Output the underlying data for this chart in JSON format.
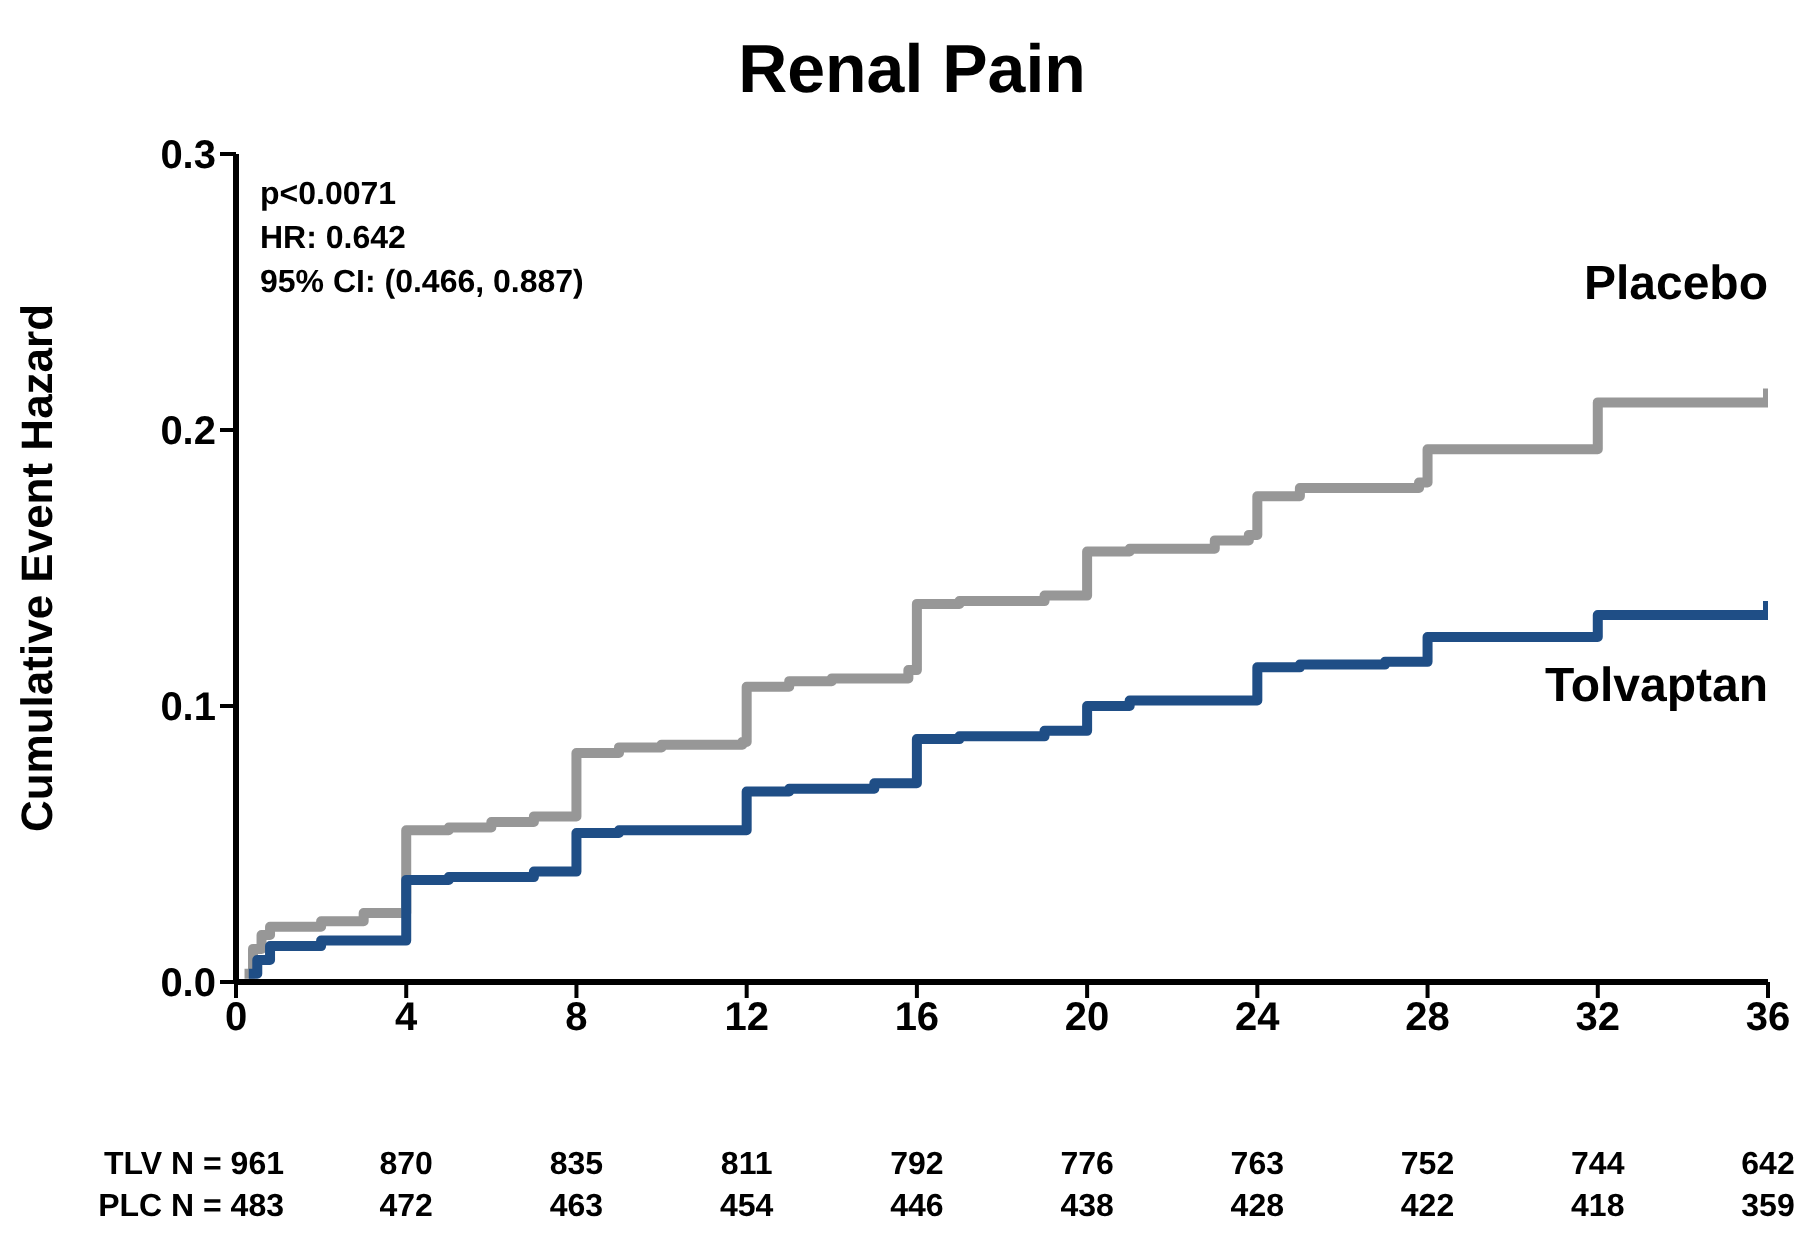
{
  "chart_data": {
    "type": "step",
    "title": "Renal Pain",
    "ylabel": "Cumulative Event Hazard",
    "xlim": [
      0,
      36
    ],
    "xticks": [
      0,
      4,
      8,
      12,
      16,
      20,
      24,
      28,
      32,
      36
    ],
    "ylim": [
      0,
      0.3
    ],
    "yticks": [
      {
        "value": 0,
        "label": "0.0"
      },
      {
        "value": 0.1,
        "label": "0.1"
      },
      {
        "value": 0.2,
        "label": "0.2"
      },
      {
        "value": 0.3,
        "label": "0.3"
      }
    ],
    "marker": "none",
    "line_style": "solid",
    "series": [
      {
        "name": "Placebo",
        "color": "#979797",
        "x": [
          0.2,
          0.4,
          0.6,
          0.8,
          2,
          3,
          4,
          5,
          6,
          7,
          7.9,
          8,
          9,
          10,
          11.9,
          12,
          13,
          14,
          15.8,
          16,
          17,
          19,
          20,
          21,
          23,
          23.8,
          24,
          25,
          27.8,
          28,
          32,
          35.9,
          36
        ],
        "values": [
          0.003,
          0.012,
          0.017,
          0.02,
          0.022,
          0.025,
          0.055,
          0.056,
          0.058,
          0.06,
          0.06,
          0.083,
          0.085,
          0.086,
          0.087,
          0.107,
          0.109,
          0.11,
          0.113,
          0.137,
          0.138,
          0.14,
          0.156,
          0.157,
          0.16,
          0.162,
          0.176,
          0.179,
          0.181,
          0.193,
          0.21,
          0.21,
          0.215
        ]
      },
      {
        "name": "Tolvaptan",
        "color": "#1f4e86",
        "x": [
          0.3,
          0.5,
          0.8,
          2,
          4,
          5,
          7,
          8,
          9,
          12,
          13,
          15,
          16,
          17,
          19,
          20,
          21,
          24,
          25,
          27,
          28,
          32,
          35.9,
          36
        ],
        "values": [
          0.003,
          0.008,
          0.013,
          0.015,
          0.037,
          0.038,
          0.04,
          0.054,
          0.055,
          0.069,
          0.07,
          0.072,
          0.088,
          0.089,
          0.091,
          0.1,
          0.102,
          0.114,
          0.115,
          0.116,
          0.125,
          0.133,
          0.133,
          0.138
        ]
      }
    ],
    "annotations": [
      "p<0.0071",
      "HR: 0.642",
      "95% CI: (0.466, 0.887)",
      "TLV N = 961",
      "870",
      "835",
      "811",
      "792",
      "776",
      "763",
      "752",
      "744",
      "642",
      "PLC N = 483",
      "472",
      "463",
      "454",
      "446",
      "438",
      "428",
      "422",
      "418",
      "359"
    ]
  }
}
